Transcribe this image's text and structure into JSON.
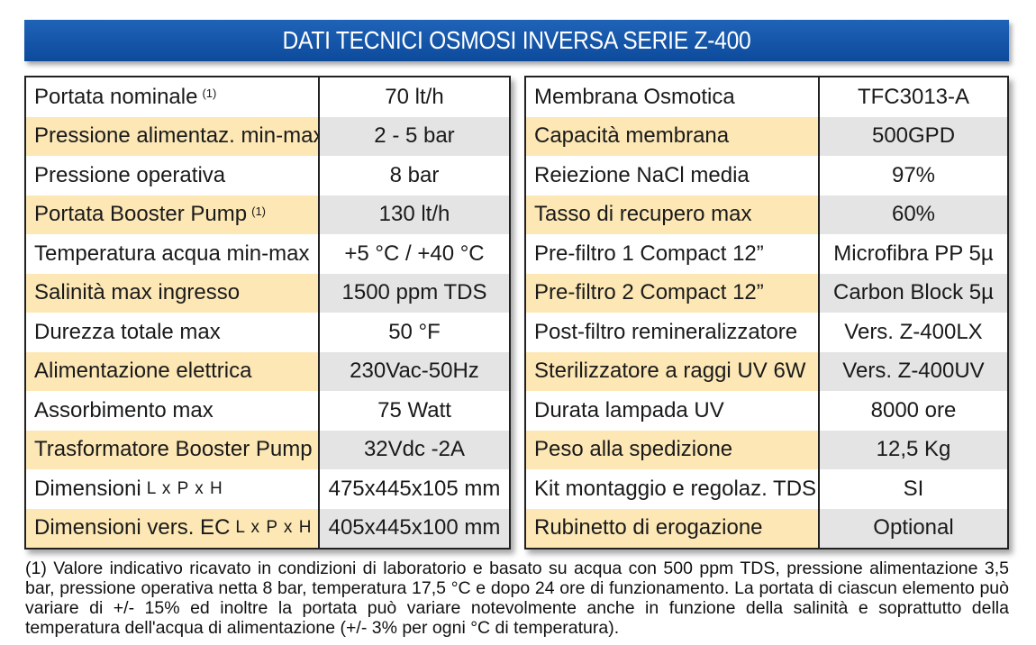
{
  "title": "DATI TECNICI OSMOSI INVERSA SERIE Z-400",
  "left_rows": [
    {
      "label": "Portata nominale",
      "sup": "(1)",
      "unit": "",
      "value": "70 lt/h"
    },
    {
      "label": "Pressione alimentaz. min-max",
      "sup": "",
      "unit": "",
      "value": "2 - 5 bar"
    },
    {
      "label": "Pressione operativa",
      "sup": "",
      "unit": "",
      "value": "8 bar"
    },
    {
      "label": "Portata Booster Pump",
      "sup": "(1)",
      "unit": "",
      "value": "130 lt/h"
    },
    {
      "label": "Temperatura acqua min-max",
      "sup": "",
      "unit": "",
      "value": "+5 °C / +40 °C"
    },
    {
      "label": "Salinità max ingresso",
      "sup": "",
      "unit": "",
      "value": "1500 ppm TDS"
    },
    {
      "label": "Durezza totale max",
      "sup": "",
      "unit": "",
      "value": "50 °F"
    },
    {
      "label": "Alimentazione elettrica",
      "sup": "",
      "unit": "",
      "value": "230Vac-50Hz"
    },
    {
      "label": "Assorbimento max",
      "sup": "",
      "unit": "",
      "value": "75 Watt"
    },
    {
      "label": "Trasformatore Booster Pump",
      "sup": "",
      "unit": "",
      "value": "32Vdc -2A"
    },
    {
      "label": "Dimensioni",
      "sup": "",
      "unit": "L x P x H",
      "value": "475x445x105 mm"
    },
    {
      "label": "Dimensioni vers. EC",
      "sup": "",
      "unit": "L x P x H",
      "value": "405x445x100 mm"
    }
  ],
  "right_rows": [
    {
      "label": "Membrana Osmotica",
      "value": "TFC3013-A"
    },
    {
      "label": "Capacità membrana",
      "value": "500GPD"
    },
    {
      "label": "Reiezione NaCl media",
      "value": "97%"
    },
    {
      "label": "Tasso di recupero max",
      "value": "60%"
    },
    {
      "label": "Pre-filtro 1 Compact 12”",
      "value": "Microfibra PP 5µ"
    },
    {
      "label": "Pre-filtro 2 Compact 12”",
      "value": "Carbon Block 5µ"
    },
    {
      "label": "Post-filtro remineralizzatore",
      "value": "Vers. Z-400LX"
    },
    {
      "label": "Sterilizzatore a raggi UV 6W",
      "value": "Vers. Z-400UV"
    },
    {
      "label": "Durata lampada UV",
      "value": "8000 ore"
    },
    {
      "label": "Peso alla spedizione",
      "value": "12,5 Kg"
    },
    {
      "label": "Kit montaggio e regolaz. TDS",
      "value": "SI"
    },
    {
      "label": "Rubinetto di erogazione",
      "value": "Optional"
    }
  ],
  "footnote": "(1) Valore indicativo ricavato in condizioni di laboratorio e basato su acqua con 500 ppm TDS, pressione alimentazione 3,5 bar, pressione operativa netta 8 bar, temperatura 17,5 °C e dopo 24 ore di funzionamento. La portata di ciascun elemento può variare di +/- 15% ed inoltre la portata può variare notevolmente anche in funzione della salinità e soprattutto della temperatura dell'acqua di alimentazione (+/- 3% per ogni °C di temperatura)."
}
